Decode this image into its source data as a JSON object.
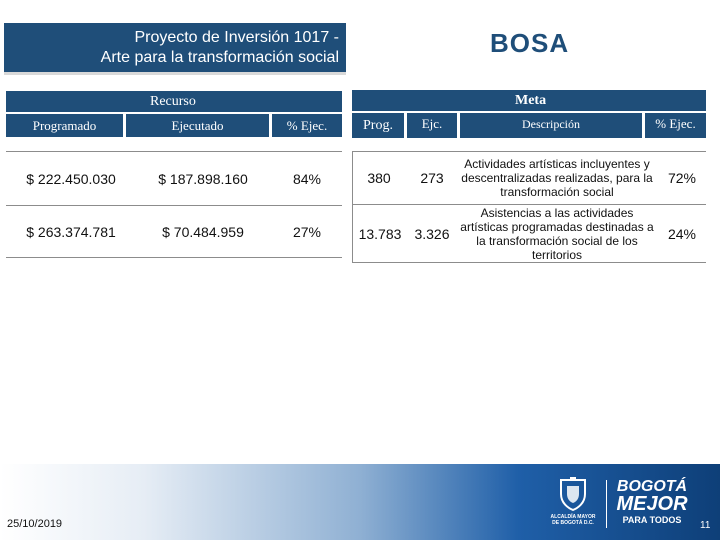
{
  "header": {
    "title_line1": "Proyecto de Inversión 1017 -",
    "title_line2": "Arte para la transformación social",
    "locality": "BOSA"
  },
  "recurso": {
    "label": "Recurso",
    "columns": [
      "Programado",
      "Ejecutado",
      "% Ejec."
    ]
  },
  "meta": {
    "label": "Meta",
    "columns": [
      "Prog.",
      "Ejc.",
      "Descripción",
      "% Ejec."
    ]
  },
  "rows": [
    {
      "programado": "$ 222.450.030",
      "ejecutado": "$ 187.898.160",
      "recurso_pct": "84%",
      "prog": "380",
      "ejc": "273",
      "descripcion": "Actividades artísticas incluyentes y descentralizadas realizadas, para la transformación social",
      "meta_pct": "72%"
    },
    {
      "programado": "$ 263.374.781",
      "ejecutado": "$ 70.484.959",
      "recurso_pct": "27%",
      "prog": "13.783",
      "ejc": "3.326",
      "descripcion": "Asistencias a las actividades artísticas programadas destinadas a la transformación social de los territorios",
      "meta_pct": "24%"
    }
  ],
  "footer": {
    "date": "25/10/2019",
    "page_number": "11",
    "logo_alcaldia": "ALCALDÍA MAYOR DE BOGOTÁ D.C.",
    "logo_brand_line1": "BOGOTÁ",
    "logo_brand_line2": "MEJOR",
    "logo_brand_line3": "PARA TODOS"
  }
}
